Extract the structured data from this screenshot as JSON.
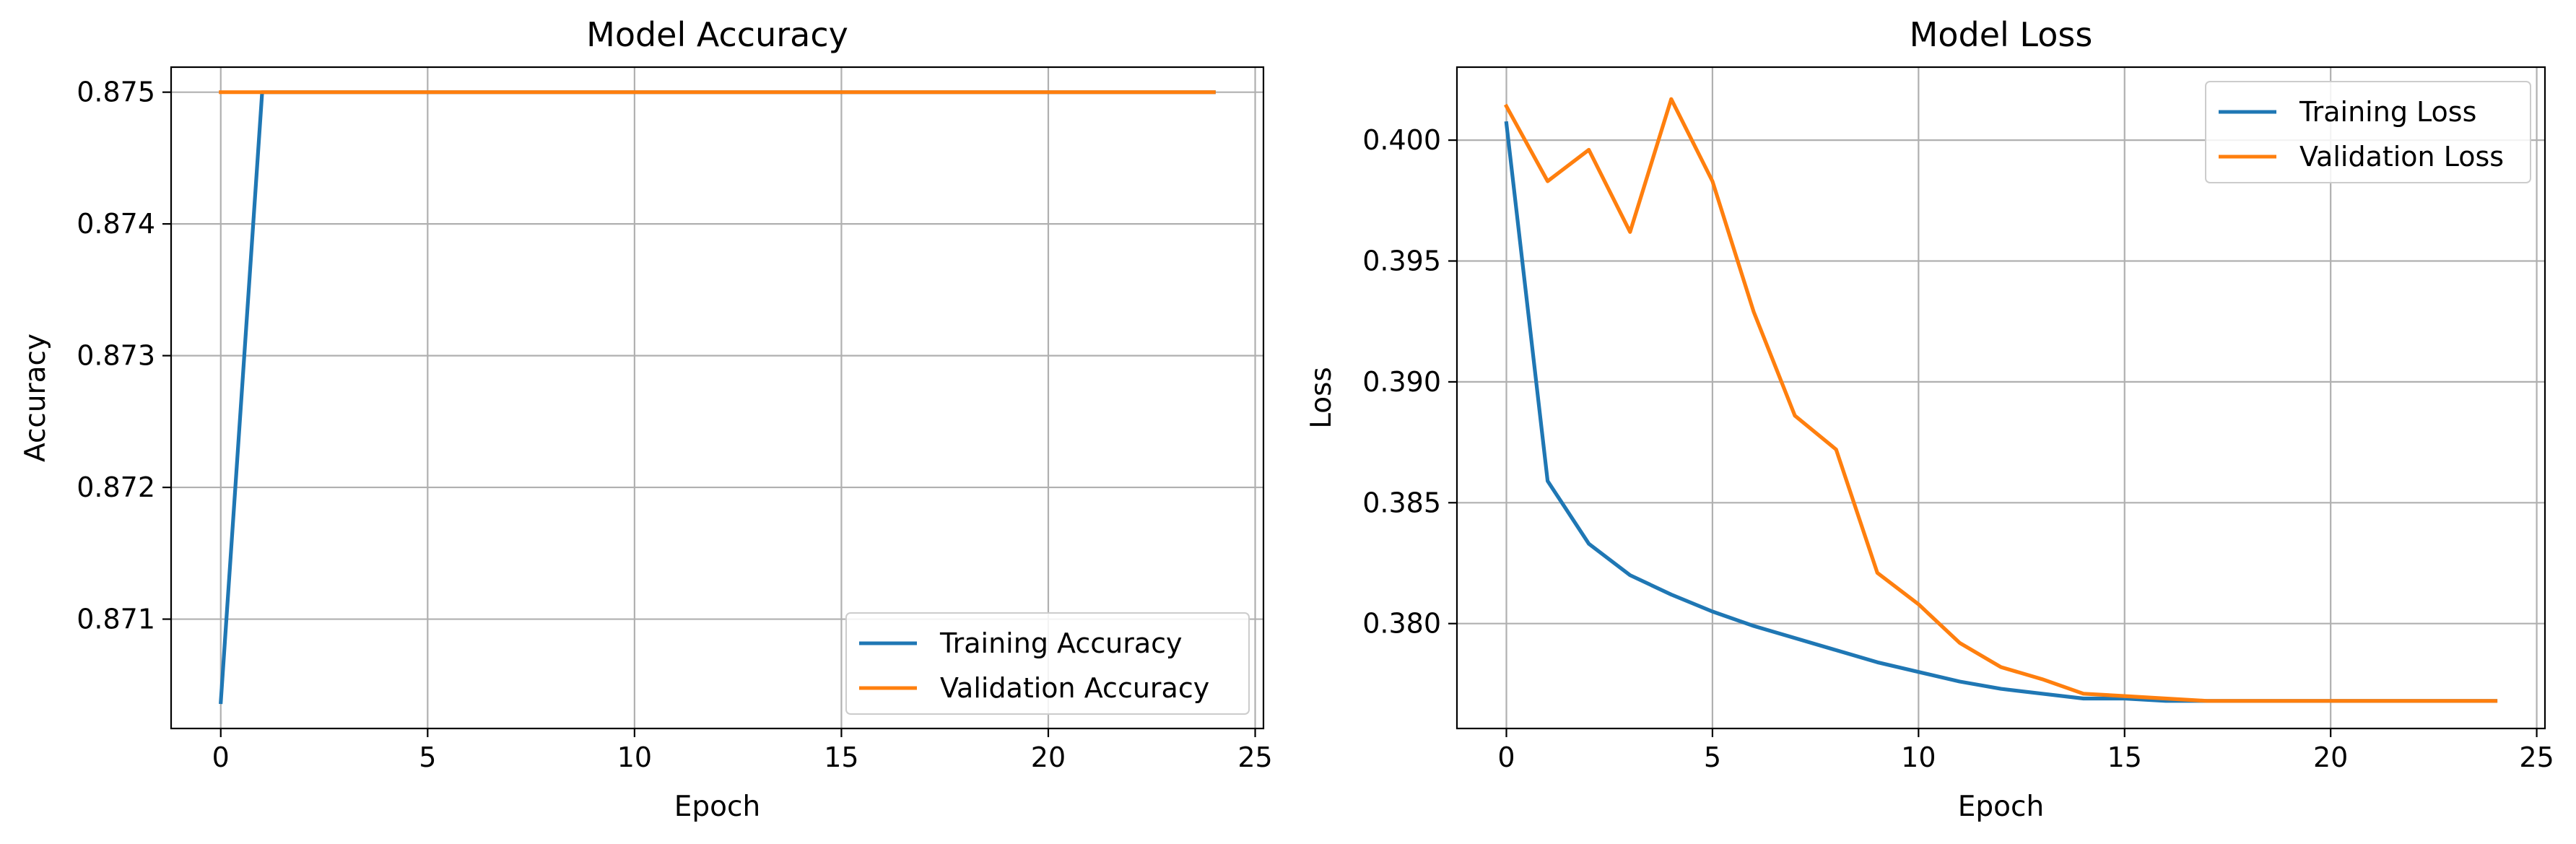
{
  "chart_data": [
    {
      "type": "line",
      "title": "Model Accuracy",
      "xlabel": "Epoch",
      "ylabel": "Accuracy",
      "xlim": [
        -1.2,
        25.2
      ],
      "ylim": [
        0.87017,
        0.87519
      ],
      "xticks": [
        0,
        5,
        10,
        15,
        20,
        25
      ],
      "xtick_labels": [
        "0",
        "5",
        "10",
        "15",
        "20",
        "25"
      ],
      "yticks": [
        0.871,
        0.872,
        0.873,
        0.874,
        0.875
      ],
      "ytick_labels": [
        "0.871",
        "0.872",
        "0.873",
        "0.874",
        "0.875"
      ],
      "grid": true,
      "legend_position": "lower-right",
      "x": [
        0,
        1,
        2,
        3,
        4,
        5,
        6,
        7,
        8,
        9,
        10,
        11,
        12,
        13,
        14,
        15,
        16,
        17,
        18,
        19,
        20,
        21,
        22,
        23,
        24
      ],
      "series": [
        {
          "name": "Training Accuracy",
          "color": "#1f77b4",
          "values": [
            0.87037,
            0.875,
            0.875,
            0.875,
            0.875,
            0.875,
            0.875,
            0.875,
            0.875,
            0.875,
            0.875,
            0.875,
            0.875,
            0.875,
            0.875,
            0.875,
            0.875,
            0.875,
            0.875,
            0.875,
            0.875,
            0.875,
            0.875,
            0.875,
            0.875
          ]
        },
        {
          "name": "Validation Accuracy",
          "color": "#ff7f0e",
          "values": [
            0.875,
            0.875,
            0.875,
            0.875,
            0.875,
            0.875,
            0.875,
            0.875,
            0.875,
            0.875,
            0.875,
            0.875,
            0.875,
            0.875,
            0.875,
            0.875,
            0.875,
            0.875,
            0.875,
            0.875,
            0.875,
            0.875,
            0.875,
            0.875,
            0.875
          ]
        }
      ]
    },
    {
      "type": "line",
      "title": "Model Loss",
      "xlabel": "Epoch",
      "ylabel": "Loss",
      "xlim": [
        -1.2,
        25.2
      ],
      "ylim": [
        0.37566,
        0.40302
      ],
      "xticks": [
        0,
        5,
        10,
        15,
        20,
        25
      ],
      "xtick_labels": [
        "0",
        "5",
        "10",
        "15",
        "20",
        "25"
      ],
      "yticks": [
        0.38,
        0.385,
        0.39,
        0.395,
        0.4
      ],
      "ytick_labels": [
        "0.380",
        "0.385",
        "0.390",
        "0.395",
        "0.400"
      ],
      "grid": true,
      "legend_position": "upper-right",
      "x": [
        0,
        1,
        2,
        3,
        4,
        5,
        6,
        7,
        8,
        9,
        10,
        11,
        12,
        13,
        14,
        15,
        16,
        17,
        18,
        19,
        20,
        21,
        22,
        23,
        24
      ],
      "series": [
        {
          "name": "Training Loss",
          "color": "#1f77b4",
          "values": [
            0.4007,
            0.3859,
            0.3833,
            0.382,
            0.3812,
            0.3805,
            0.3799,
            0.3794,
            0.3789,
            0.3784,
            0.378,
            0.3776,
            0.3773,
            0.3771,
            0.3769,
            0.3769,
            0.3768,
            0.3768,
            0.3768,
            0.3768,
            0.3768,
            0.3768,
            0.3768,
            0.3768,
            0.3768
          ]
        },
        {
          "name": "Validation Loss",
          "color": "#ff7f0e",
          "values": [
            0.4014,
            0.3983,
            0.3996,
            0.3962,
            0.4017,
            0.3983,
            0.3929,
            0.3886,
            0.3872,
            0.3821,
            0.3808,
            0.3792,
            0.3782,
            0.3777,
            0.3771,
            0.377,
            0.3769,
            0.3768,
            0.3768,
            0.3768,
            0.3768,
            0.3768,
            0.3768,
            0.3768,
            0.3768
          ]
        }
      ]
    }
  ]
}
